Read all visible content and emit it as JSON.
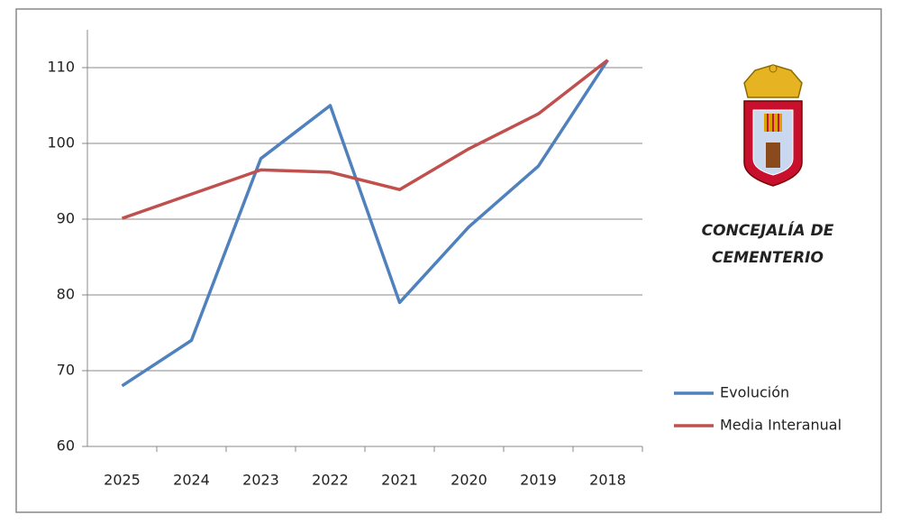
{
  "chart_data": {
    "type": "line",
    "title": [
      "CONCEJALÍA DE",
      "CEMENTERIO"
    ],
    "categories": [
      "2025",
      "2024",
      "2023",
      "2022",
      "2021",
      "2020",
      "2019",
      "2018"
    ],
    "series": [
      {
        "name": "Evolución",
        "color": "#4f81bd",
        "values": [
          68,
          74,
          98,
          105,
          79,
          89,
          97,
          111
        ]
      },
      {
        "name": "Media Interanual",
        "color": "#c0504d",
        "values": [
          90.1,
          93.3,
          96.5,
          96.2,
          93.9,
          99.3,
          103.9,
          111
        ]
      }
    ],
    "ylim": [
      60,
      115
    ],
    "yticks": [
      60,
      70,
      80,
      90,
      100,
      110
    ],
    "grid": true,
    "legend": "right"
  }
}
